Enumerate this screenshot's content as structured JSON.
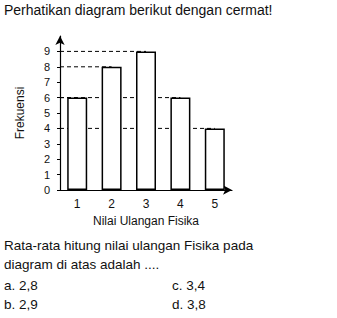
{
  "header": "Perhatikan diagram berikut dengan cermat!",
  "chart_data": {
    "type": "bar",
    "categories": [
      "1",
      "2",
      "3",
      "4",
      "5"
    ],
    "values": [
      6,
      8,
      9,
      6,
      4
    ],
    "color": "#ffffff",
    "x_label": "Nilai Ulangan Fisika",
    "y_label": "Frekuensi",
    "ylim": [
      0,
      10
    ],
    "yticks": [
      0,
      1,
      2,
      3,
      4,
      5,
      6,
      7,
      8,
      9
    ],
    "grid": false
  },
  "question": [
    "Rata-rata hitung nilai ulangan Fisika pada",
    "diagram di atas adalah ...."
  ],
  "options": [
    {
      "letter": "a.",
      "text": "2,8"
    },
    {
      "letter": "b.",
      "text": "2,9"
    },
    {
      "letter": "c.",
      "text": "3,4"
    },
    {
      "letter": "d.",
      "text": "3,8"
    }
  ]
}
